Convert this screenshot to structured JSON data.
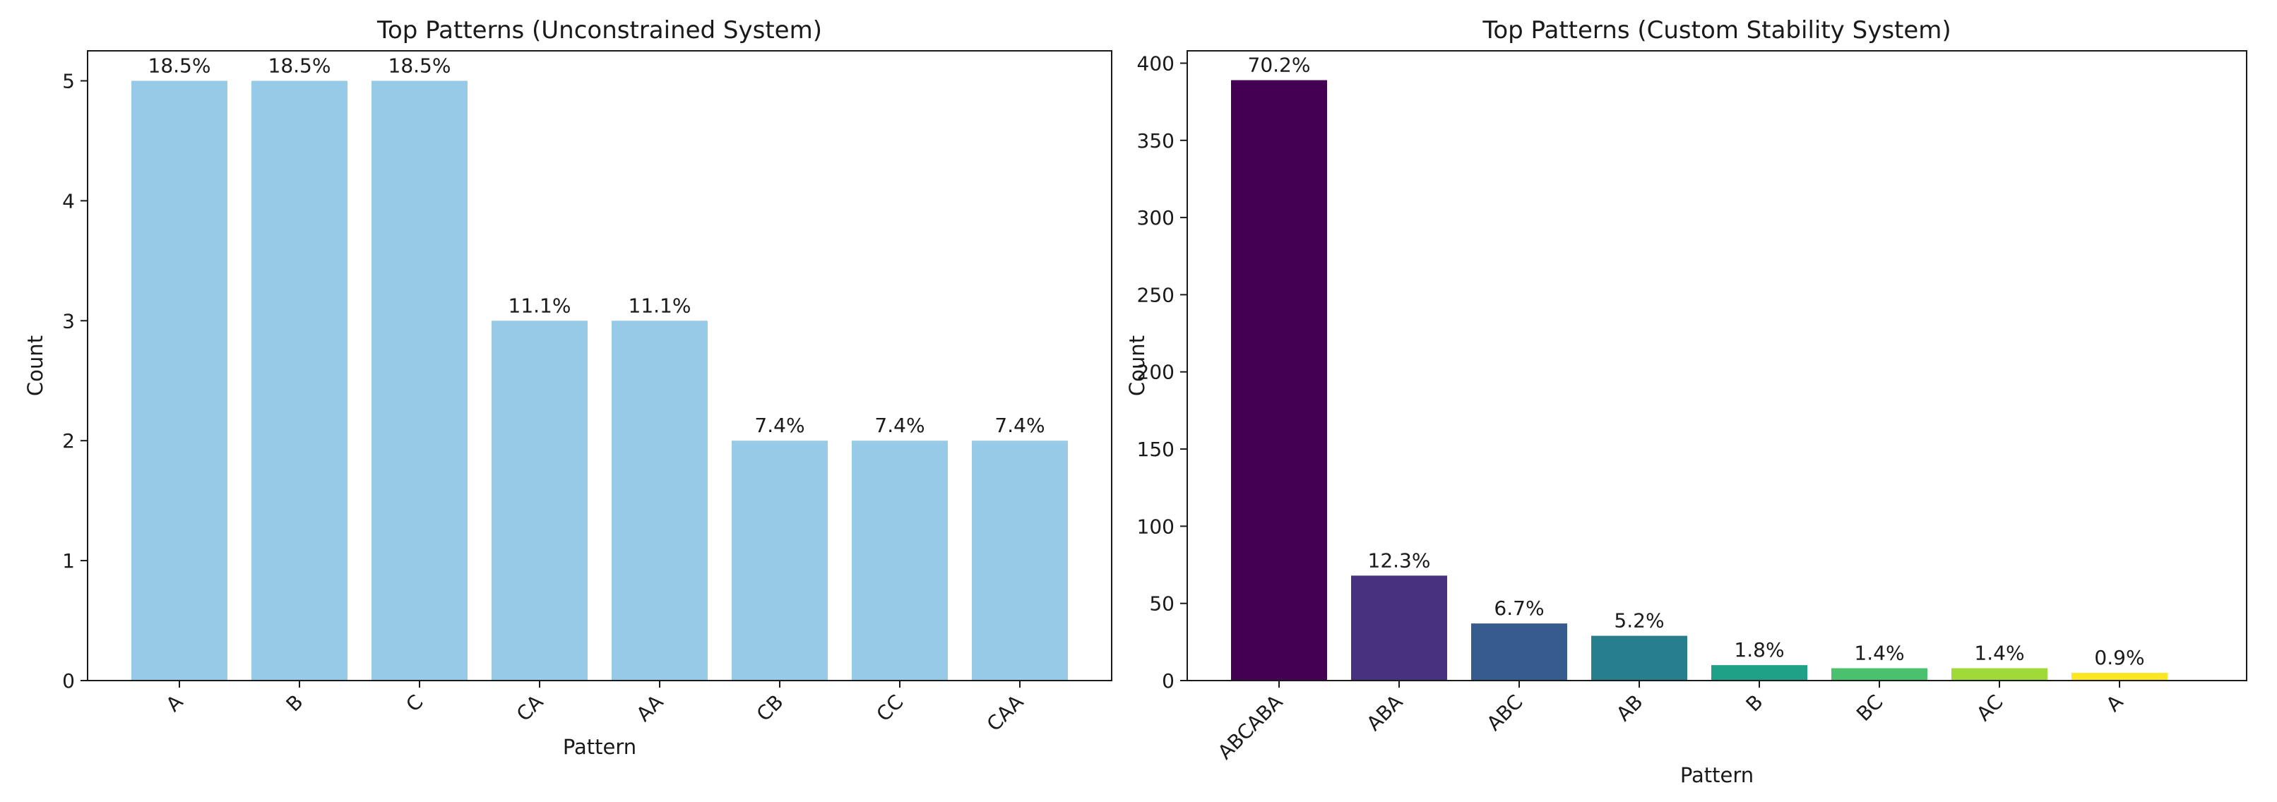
{
  "chart_data": [
    {
      "type": "bar",
      "title": "Top Patterns (Unconstrained System)",
      "xlabel": "Pattern",
      "ylabel": "Count",
      "categories": [
        "A",
        "B",
        "C",
        "CA",
        "AA",
        "CB",
        "CC",
        "CAA"
      ],
      "values": [
        5,
        5,
        5,
        3,
        3,
        2,
        2,
        2
      ],
      "data_labels": [
        "18.5%",
        "18.5%",
        "18.5%",
        "11.1%",
        "11.1%",
        "7.4%",
        "7.4%",
        "7.4%"
      ],
      "colors": [
        "#97cae6",
        "#97cae6",
        "#97cae6",
        "#97cae6",
        "#97cae6",
        "#97cae6",
        "#97cae6",
        "#97cae6"
      ],
      "ylim": [
        0,
        5.25
      ],
      "yticks": [
        0,
        1,
        2,
        3,
        4,
        5
      ],
      "grid": false,
      "legend": "none"
    },
    {
      "type": "bar",
      "title": "Top Patterns (Custom Stability System)",
      "xlabel": "Pattern",
      "ylabel": "Count",
      "categories": [
        "ABCABA",
        "ABA",
        "ABC",
        "AB",
        "B",
        "BC",
        "AC",
        "A"
      ],
      "values": [
        389,
        68,
        37,
        29,
        10,
        8,
        8,
        5
      ],
      "data_labels": [
        "70.2%",
        "12.3%",
        "6.7%",
        "5.2%",
        "1.8%",
        "1.4%",
        "1.4%",
        "0.9%"
      ],
      "colors": [
        "#440154",
        "#46327e",
        "#365c8d",
        "#277f8e",
        "#1fa187",
        "#4ac16d",
        "#a0da39",
        "#fde725"
      ],
      "ylim": [
        0,
        408
      ],
      "yticks": [
        0,
        50,
        100,
        150,
        200,
        250,
        300,
        350,
        400
      ],
      "grid": false,
      "legend": "none"
    }
  ]
}
